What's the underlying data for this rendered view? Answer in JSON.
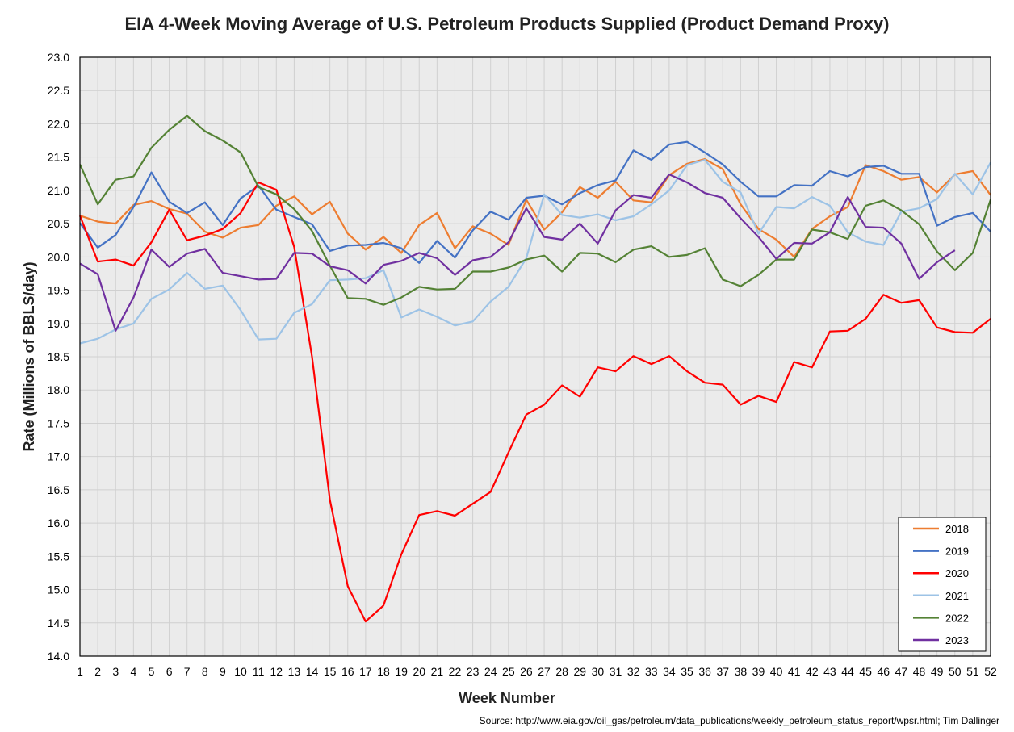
{
  "chart_data": {
    "type": "line",
    "title": "EIA 4-Week Moving Average of U.S. Petroleum Products Supplied (Product Demand Proxy)",
    "xlabel": "Week Number",
    "ylabel": "Rate (Millions of BBLS/day)",
    "source": "Source: http://www.eia.gov/oil_gas/petroleum/data_publications/weekly_petroleum_status_report/wpsr.html; Tim Dallinger",
    "xlim": [
      1,
      52
    ],
    "ylim": [
      14.0,
      23.0
    ],
    "ytick_step": 0.5,
    "grid": true,
    "legend_position": "bottom-right",
    "x": [
      1,
      2,
      3,
      4,
      5,
      6,
      7,
      8,
      9,
      10,
      11,
      12,
      13,
      14,
      15,
      16,
      17,
      18,
      19,
      20,
      21,
      22,
      23,
      24,
      25,
      26,
      27,
      28,
      29,
      30,
      31,
      32,
      33,
      34,
      35,
      36,
      37,
      38,
      39,
      40,
      41,
      42,
      43,
      44,
      45,
      46,
      47,
      48,
      49,
      50,
      51,
      52
    ],
    "series": [
      {
        "name": "2018",
        "color": "#ED7D31",
        "values": [
          20.62,
          20.53,
          20.5,
          20.78,
          20.84,
          20.72,
          20.65,
          20.38,
          20.29,
          20.44,
          20.48,
          20.77,
          20.91,
          20.64,
          20.83,
          20.35,
          20.11,
          20.3,
          20.06,
          20.48,
          20.66,
          20.13,
          20.46,
          20.35,
          20.18,
          20.86,
          20.41,
          20.67,
          21.05,
          20.89,
          21.13,
          20.85,
          20.82,
          21.23,
          21.4,
          21.47,
          21.32,
          20.79,
          20.42,
          20.26,
          20.0,
          20.42,
          20.61,
          20.75,
          21.38,
          21.29,
          21.16,
          21.2,
          20.97,
          21.24,
          21.29,
          20.93
        ]
      },
      {
        "name": "2019",
        "color": "#4472C4",
        "values": [
          20.51,
          20.14,
          20.33,
          20.75,
          21.27,
          20.83,
          20.66,
          20.82,
          20.48,
          20.88,
          21.07,
          20.71,
          20.6,
          20.49,
          20.09,
          20.17,
          20.18,
          20.21,
          20.13,
          19.91,
          20.24,
          19.99,
          20.4,
          20.68,
          20.56,
          20.89,
          20.92,
          20.79,
          20.96,
          21.08,
          21.15,
          21.6,
          21.46,
          21.69,
          21.73,
          21.57,
          21.39,
          21.13,
          20.91,
          20.91,
          21.08,
          21.07,
          21.29,
          21.21,
          21.35,
          21.37,
          21.25,
          21.25,
          20.47,
          20.6,
          20.66,
          20.38
        ]
      },
      {
        "name": "2020",
        "color": "#FF0000",
        "values": [
          20.62,
          19.93,
          19.96,
          19.87,
          20.22,
          20.71,
          20.25,
          20.32,
          20.42,
          20.66,
          21.12,
          21.01,
          20.15,
          18.5,
          16.35,
          15.05,
          14.52,
          14.76,
          15.53,
          16.12,
          16.18,
          16.11,
          16.29,
          16.47,
          17.06,
          17.63,
          17.78,
          18.07,
          17.9,
          18.34,
          18.28,
          18.51,
          18.39,
          18.51,
          18.28,
          18.11,
          18.08,
          17.78,
          17.91,
          17.82,
          18.42,
          18.34,
          18.88,
          18.89,
          19.07,
          19.43,
          19.31,
          19.35,
          18.94,
          18.87,
          18.86,
          19.07
        ]
      },
      {
        "name": "2021",
        "color": "#9DC3E6",
        "values": [
          18.7,
          18.77,
          18.91,
          19.0,
          19.37,
          19.51,
          19.76,
          19.52,
          19.57,
          19.2,
          18.76,
          18.77,
          19.16,
          19.29,
          19.65,
          19.66,
          19.68,
          19.8,
          19.09,
          19.21,
          19.1,
          18.97,
          19.03,
          19.33,
          19.55,
          19.98,
          20.94,
          20.63,
          20.59,
          20.64,
          20.55,
          20.61,
          20.79,
          21.0,
          21.38,
          21.46,
          21.13,
          20.97,
          20.35,
          20.75,
          20.73,
          20.9,
          20.77,
          20.37,
          20.23,
          20.18,
          20.68,
          20.73,
          20.87,
          21.25,
          20.94,
          21.42
        ]
      },
      {
        "name": "2022",
        "color": "#548235",
        "values": [
          21.39,
          20.79,
          21.16,
          21.21,
          21.64,
          21.91,
          22.12,
          21.89,
          21.75,
          21.57,
          21.05,
          20.94,
          20.72,
          20.39,
          19.87,
          19.38,
          19.37,
          19.28,
          19.39,
          19.55,
          19.51,
          19.52,
          19.78,
          19.78,
          19.84,
          19.96,
          20.02,
          19.78,
          20.06,
          20.05,
          19.92,
          20.11,
          20.16,
          20.0,
          20.03,
          20.13,
          19.66,
          19.56,
          19.73,
          19.96,
          19.96,
          20.41,
          20.37,
          20.27,
          20.77,
          20.85,
          20.7,
          20.49,
          20.08,
          19.8,
          20.06,
          20.86
        ]
      },
      {
        "name": "2023",
        "color": "#7030A0",
        "values": [
          19.9,
          19.74,
          18.89,
          19.39,
          20.11,
          19.85,
          20.05,
          20.12,
          19.76,
          19.71,
          19.66,
          19.67,
          20.06,
          20.05,
          19.86,
          19.8,
          19.6,
          19.88,
          19.94,
          20.06,
          19.98,
          19.73,
          19.95,
          20.0,
          20.22,
          20.73,
          20.3,
          20.26,
          20.5,
          20.2,
          20.7,
          20.93,
          20.89,
          21.24,
          21.12,
          20.96,
          20.89,
          20.58,
          20.3,
          19.97,
          20.21,
          20.2,
          20.37,
          20.9,
          20.45,
          20.44,
          20.2,
          19.67,
          19.92,
          20.1,
          null,
          null
        ]
      }
    ]
  }
}
